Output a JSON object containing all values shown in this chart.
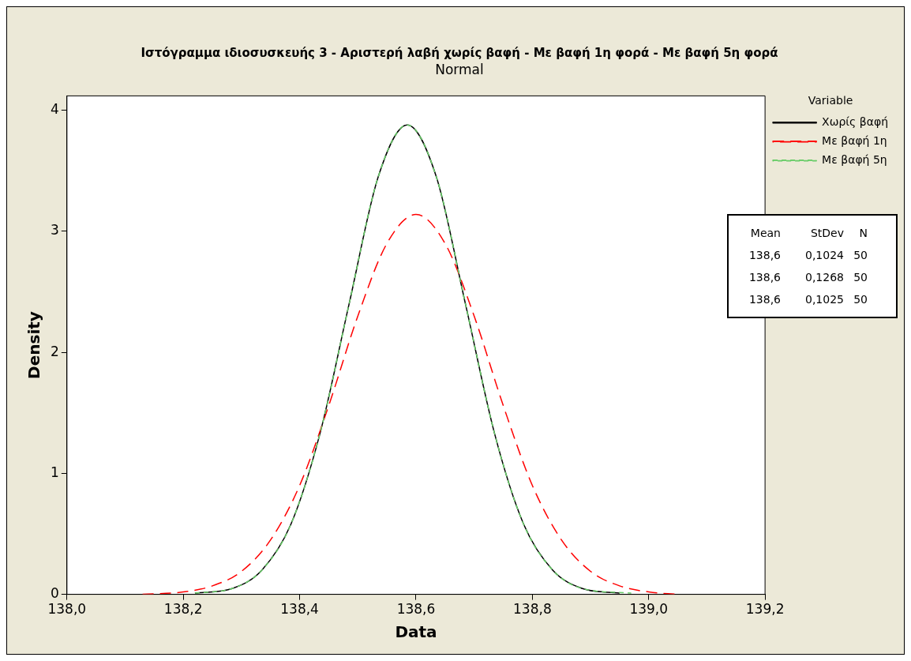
{
  "chart_data": {
    "type": "line",
    "title": "Ιστόγραμμα ιδιοσυσκευής 3 - Αριστερή λαβή χωρίς βαφή - Με βαφή 1η φορά - Με βαφή 5η φορά",
    "subtitle": "Normal",
    "xlabel": "Data",
    "ylabel": "Density",
    "legend_title": "Variable",
    "legend": "right",
    "xlim": [
      138.0,
      139.2
    ],
    "xticks": [
      {
        "value": 138.0,
        "label": "138,0"
      },
      {
        "value": 138.2,
        "label": "138,2"
      },
      {
        "value": 138.4,
        "label": "138,4"
      },
      {
        "value": 138.6,
        "label": "138,6"
      },
      {
        "value": 138.8,
        "label": "138,8"
      },
      {
        "value": 139.0,
        "label": "139,0"
      },
      {
        "value": 139.2,
        "label": "139,2"
      }
    ],
    "ylim": [
      0,
      4.12
    ],
    "yticks": [
      0,
      1,
      2,
      3,
      4
    ],
    "grid": false,
    "marker": "none",
    "series": [
      {
        "name": "Χωρίς βαφή",
        "color": "#000000",
        "line_style": "solid",
        "x": [
          138.22,
          138.285,
          138.335,
          138.385,
          138.435,
          138.485,
          138.535,
          138.585,
          138.635,
          138.685,
          138.735,
          138.785,
          138.835,
          138.885,
          138.95
        ],
        "values": [
          0.01,
          0.05,
          0.2,
          0.58,
          1.33,
          2.4,
          3.45,
          3.88,
          3.45,
          2.4,
          1.33,
          0.58,
          0.2,
          0.05,
          0.01
        ]
      },
      {
        "name": "Με βαφή 1η",
        "color": "#ff0000",
        "line_style": "dashed",
        "x": [
          138.13,
          138.2,
          138.25,
          138.3,
          138.35,
          138.4,
          138.45,
          138.5,
          138.55,
          138.6,
          138.65,
          138.7,
          138.75,
          138.8,
          138.85,
          138.9,
          138.95,
          139.0,
          139.05
        ],
        "values": [
          0,
          0.02,
          0.07,
          0.19,
          0.45,
          0.9,
          1.56,
          2.3,
          2.9,
          3.14,
          2.9,
          2.3,
          1.56,
          0.9,
          0.45,
          0.19,
          0.07,
          0.02,
          0
        ]
      },
      {
        "name": "Με βαφή 5η",
        "color": "#66cc66",
        "line_style": "dotted",
        "x": [
          138.22,
          138.285,
          138.335,
          138.385,
          138.435,
          138.485,
          138.535,
          138.585,
          138.635,
          138.685,
          138.735,
          138.785,
          138.835,
          138.885,
          138.97
        ],
        "values": [
          0.01,
          0.05,
          0.2,
          0.58,
          1.33,
          2.4,
          3.45,
          3.88,
          3.45,
          2.4,
          1.33,
          0.58,
          0.2,
          0.05,
          0.01
        ]
      }
    ],
    "annotations": [
      "Mean StDev N",
      "138,6 0,1024 50",
      "138,6 0,1268 50",
      "138,6 0,1025 50"
    ]
  }
}
